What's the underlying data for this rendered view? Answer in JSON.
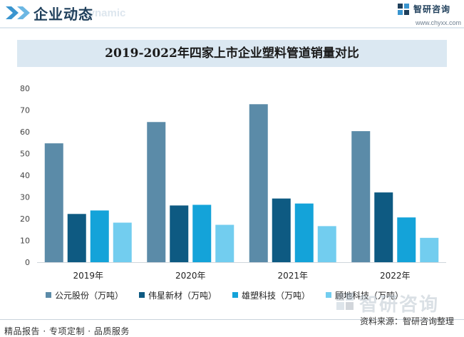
{
  "header": {
    "title": "企业动态",
    "ghost_text": "te dynamic",
    "logo_name": "智研咨询",
    "logo_url": "www.chyxx.com"
  },
  "colors": {
    "header_chevron": "#3a95cf",
    "title_bar": "#dbe8f2"
  },
  "icons": [
    "double-chevron-icon",
    "brand-logo-icon"
  ],
  "chart_data": {
    "type": "bar",
    "title": "2019-2022年四家上市企业塑料管道销量对比",
    "categories": [
      "2019年",
      "2020年",
      "2021年",
      "2022年"
    ],
    "ylim": [
      0,
      80
    ],
    "yticks": [
      0,
      10,
      20,
      30,
      40,
      50,
      60,
      70,
      80
    ],
    "grid": false,
    "legend_position": "bottom",
    "series": [
      {
        "name": "公元股份（万吨）",
        "color": "#5b8ba8",
        "values": [
          54.7,
          64.5,
          72.7,
          60.3
        ]
      },
      {
        "name": "伟星新材（万吨）",
        "color": "#0e5a82",
        "values": [
          22.2,
          26.1,
          29.3,
          32.1
        ]
      },
      {
        "name": "雄塑科技（万吨）",
        "color": "#14a3d9",
        "values": [
          23.8,
          26.4,
          27.0,
          20.6
        ]
      },
      {
        "name": "顾地科技（万吨）",
        "color": "#72cdef",
        "values": [
          18.2,
          17.2,
          16.6,
          11.2
        ]
      }
    ]
  },
  "footer": {
    "left": "精品报告 · 专项定制 · 品质服务",
    "source": "资料来源：智研咨询整理",
    "watermark": "智研咨询"
  }
}
